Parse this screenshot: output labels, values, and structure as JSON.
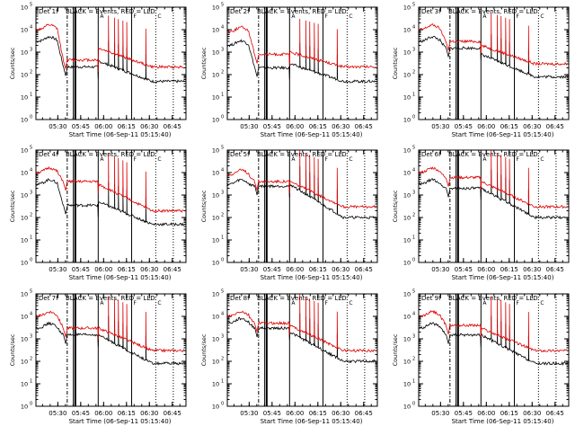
{
  "colors": {
    "events": "#000000",
    "lld": "#dd0000",
    "axes": "#000000",
    "background": "#ffffff"
  },
  "shared": {
    "x_tick_labels": [
      "05:30",
      "05:45",
      "06:00",
      "06:15",
      "06:30",
      "06:45"
    ],
    "y_tick_labels": [
      "10",
      "10",
      "10",
      "10",
      "10",
      "10"
    ],
    "y_tick_exponents": [
      "0",
      "1",
      "2",
      "3",
      "4",
      "5"
    ],
    "ylabel": "Counts/sec",
    "xlabel": "Start Time (06-Sep-11 05:15:40)",
    "legend_text": "BLACK = Events, RED = LLD",
    "flag_letters": [
      "A",
      "F",
      "C"
    ]
  },
  "chart_data": [
    {
      "type": "line",
      "title": "Det 1f",
      "y_scale": "log",
      "ylim": [
        1,
        100000
      ],
      "x_unit": "clock time",
      "series": [
        {
          "name": "Events",
          "color": "#000000",
          "levels": {
            "pre": 3000,
            "plateau": 220,
            "post_start": 400,
            "post_end": 50
          }
        },
        {
          "name": "LLD",
          "color": "#dd0000",
          "levels": {
            "pre": 10000,
            "plateau": 450,
            "post_start": 1500,
            "post_end": 220
          }
        }
      ]
    },
    {
      "type": "line",
      "title": "Det 2f",
      "y_scale": "log",
      "ylim": [
        1,
        100000
      ],
      "x_unit": "clock time",
      "series": [
        {
          "name": "Events",
          "color": "#000000",
          "levels": {
            "pre": 2000,
            "plateau": 200,
            "post_start": 300,
            "post_end": 50
          }
        },
        {
          "name": "LLD",
          "color": "#dd0000",
          "levels": {
            "pre": 8000,
            "plateau": 800,
            "post_start": 1000,
            "post_end": 220
          }
        }
      ]
    },
    {
      "type": "line",
      "title": "Det 3f",
      "y_scale": "log",
      "ylim": [
        1,
        100000
      ],
      "x_unit": "clock time",
      "series": [
        {
          "name": "Events",
          "color": "#000000",
          "levels": {
            "pre": 3000,
            "plateau": 1500,
            "post_start": 800,
            "post_end": 80
          }
        },
        {
          "name": "LLD",
          "color": "#dd0000",
          "levels": {
            "pre": 10000,
            "plateau": 3000,
            "post_start": 2000,
            "post_end": 300
          }
        }
      ]
    },
    {
      "type": "line",
      "title": "Det 4f",
      "y_scale": "log",
      "ylim": [
        1,
        100000
      ],
      "x_unit": "clock time",
      "series": [
        {
          "name": "Events",
          "color": "#000000",
          "levels": {
            "pre": 3000,
            "plateau": 350,
            "post_start": 500,
            "post_end": 50
          }
        },
        {
          "name": "LLD",
          "color": "#dd0000",
          "levels": {
            "pre": 10000,
            "plateau": 4000,
            "post_start": 3000,
            "post_end": 200
          }
        }
      ]
    },
    {
      "type": "line",
      "title": "Det 5f",
      "y_scale": "log",
      "ylim": [
        1,
        100000
      ],
      "x_unit": "clock time",
      "series": [
        {
          "name": "Events",
          "color": "#000000",
          "levels": {
            "pre": 3000,
            "plateau": 2500,
            "post_start": 3000,
            "post_end": 100
          }
        },
        {
          "name": "LLD",
          "color": "#dd0000",
          "levels": {
            "pre": 8000,
            "plateau": 4000,
            "post_start": 4000,
            "post_end": 300
          }
        }
      ]
    },
    {
      "type": "line",
      "title": "Det 6f",
      "y_scale": "log",
      "ylim": [
        1,
        100000
      ],
      "x_unit": "clock time",
      "series": [
        {
          "name": "Events",
          "color": "#000000",
          "levels": {
            "pre": 3000,
            "plateau": 2000,
            "post_start": 2000,
            "post_end": 100
          }
        },
        {
          "name": "LLD",
          "color": "#dd0000",
          "levels": {
            "pre": 10000,
            "plateau": 6000,
            "post_start": 4000,
            "post_end": 300
          }
        }
      ]
    },
    {
      "type": "line",
      "title": "Det 7f",
      "y_scale": "log",
      "ylim": [
        1,
        100000
      ],
      "x_unit": "clock time",
      "series": [
        {
          "name": "Events",
          "color": "#000000",
          "levels": {
            "pre": 3000,
            "plateau": 1500,
            "post_start": 1500,
            "post_end": 80
          }
        },
        {
          "name": "LLD",
          "color": "#dd0000",
          "levels": {
            "pre": 10000,
            "plateau": 3000,
            "post_start": 3000,
            "post_end": 300
          }
        }
      ]
    },
    {
      "type": "line",
      "title": "Det 8f",
      "y_scale": "log",
      "ylim": [
        1,
        100000
      ],
      "x_unit": "clock time",
      "series": [
        {
          "name": "Events",
          "color": "#000000",
          "levels": {
            "pre": 5000,
            "plateau": 3000,
            "post_start": 2000,
            "post_end": 100
          }
        },
        {
          "name": "LLD",
          "color": "#dd0000",
          "levels": {
            "pre": 10000,
            "plateau": 5000,
            "post_start": 4000,
            "post_end": 300
          }
        }
      ]
    },
    {
      "type": "line",
      "title": "Det 9f",
      "y_scale": "log",
      "ylim": [
        1,
        100000
      ],
      "x_unit": "clock time",
      "series": [
        {
          "name": "Events",
          "color": "#000000",
          "levels": {
            "pre": 3000,
            "plateau": 1500,
            "post_start": 1500,
            "post_end": 80
          }
        },
        {
          "name": "LLD",
          "color": "#dd0000",
          "levels": {
            "pre": 10000,
            "plateau": 4000,
            "post_start": 3000,
            "post_end": 300
          }
        }
      ]
    }
  ]
}
